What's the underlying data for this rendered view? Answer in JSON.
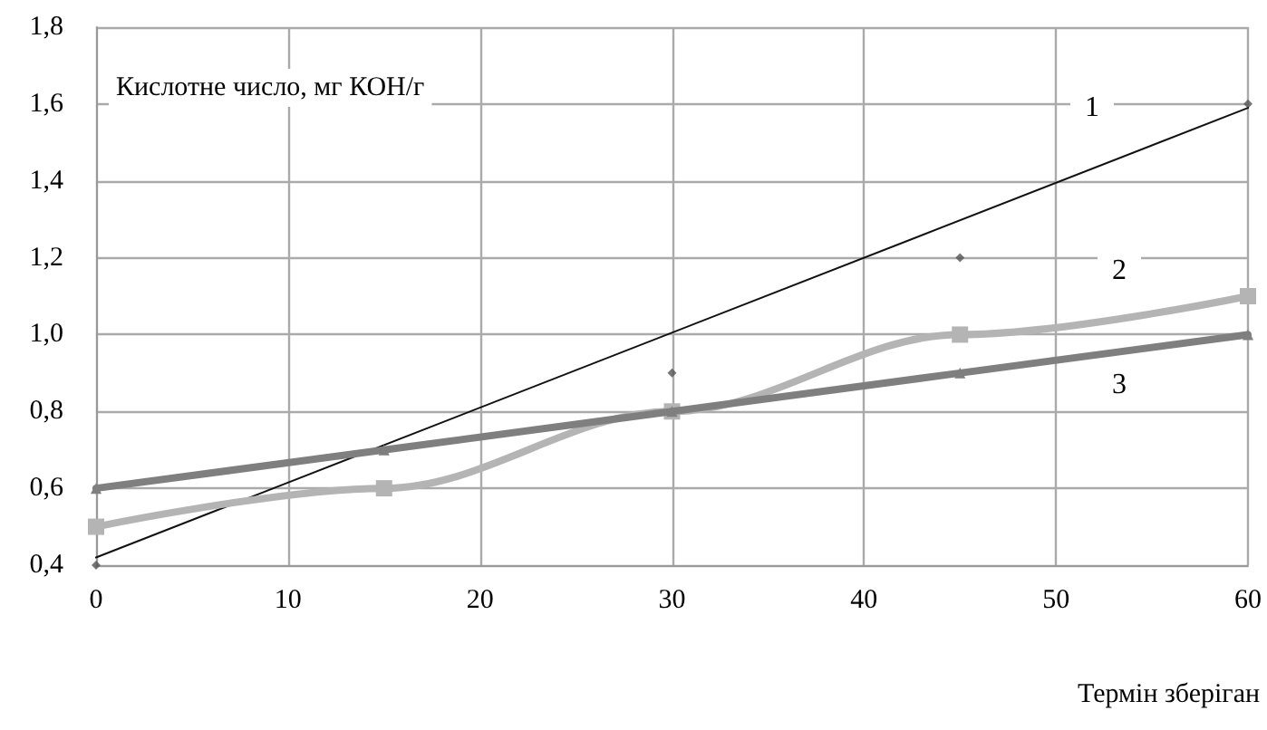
{
  "chart_data": {
    "type": "line",
    "ylabel": "Кислотне число, мг КОН/г",
    "xlabel": "Термін зберіган",
    "xlim": [
      0,
      60
    ],
    "xticks": [
      0,
      10,
      20,
      30,
      40,
      50,
      60
    ],
    "ylim": [
      0.4,
      1.8
    ],
    "yticks": [
      {
        "value": 0.4,
        "label": "0,4"
      },
      {
        "value": 0.6,
        "label": "0,6"
      },
      {
        "value": 0.8,
        "label": "0,8"
      },
      {
        "value": 1.0,
        "label": "1,0"
      },
      {
        "value": 1.2,
        "label": "1,2"
      },
      {
        "value": 1.4,
        "label": "1,4"
      },
      {
        "value": 1.6,
        "label": "1,6"
      },
      {
        "value": 1.8,
        "label": "1,8"
      }
    ],
    "grid": true,
    "series": [
      {
        "type": "scatter",
        "color": "#555555",
        "marker": "diamond",
        "x": [
          0,
          15,
          30,
          45,
          60
        ],
        "values": [
          0.4,
          null,
          0.9,
          1.2,
          1.6
        ]
      },
      {
        "name": "1",
        "color": "#111111",
        "marker": "none",
        "x": [
          0,
          60
        ],
        "values": [
          0.42,
          1.59
        ]
      },
      {
        "name": "2",
        "color": "#b4b4b4",
        "marker": "square",
        "x": [
          0,
          15,
          30,
          45,
          60
        ],
        "values": [
          0.5,
          0.6,
          0.8,
          1.0,
          1.1
        ]
      },
      {
        "name": "3",
        "color": "#7f7f7f",
        "marker": "triangle",
        "x": [
          0,
          15,
          30,
          45,
          60
        ],
        "values": [
          0.6,
          0.7,
          0.8,
          0.9,
          1.0
        ]
      }
    ]
  }
}
